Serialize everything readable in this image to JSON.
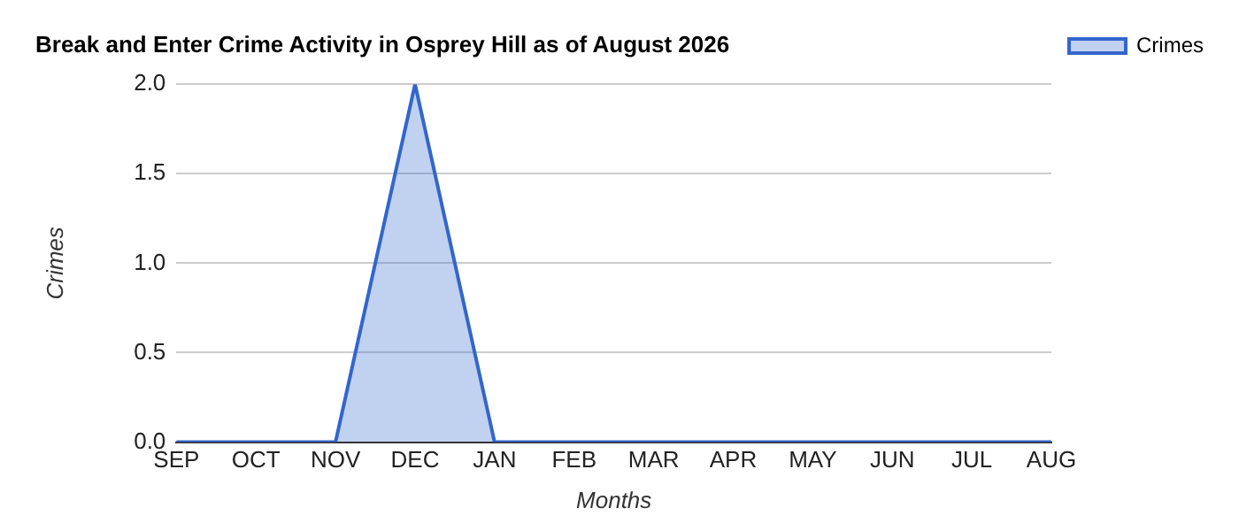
{
  "chart_data": {
    "type": "area",
    "title": "Break and Enter Crime Activity in Osprey Hill as of August 2026",
    "xlabel": "Months",
    "ylabel": "Crimes",
    "categories": [
      "SEP",
      "OCT",
      "NOV",
      "DEC",
      "JAN",
      "FEB",
      "MAR",
      "APR",
      "MAY",
      "JUN",
      "JUL",
      "AUG"
    ],
    "series": [
      {
        "name": "Crimes",
        "color": "#3366cc",
        "values": [
          0,
          0,
          0,
          2,
          0,
          0,
          0,
          0,
          0,
          0,
          0,
          0
        ]
      }
    ],
    "ylim": [
      0,
      2
    ],
    "yticks": [
      {
        "value": 0,
        "label": "0.0"
      },
      {
        "value": 0.5,
        "label": "0.5"
      },
      {
        "value": 1,
        "label": "1.0"
      },
      {
        "value": 1.5,
        "label": "1.5"
      },
      {
        "value": 2,
        "label": "2.0"
      }
    ],
    "grid": "y",
    "legend": "right",
    "marker": "none"
  }
}
